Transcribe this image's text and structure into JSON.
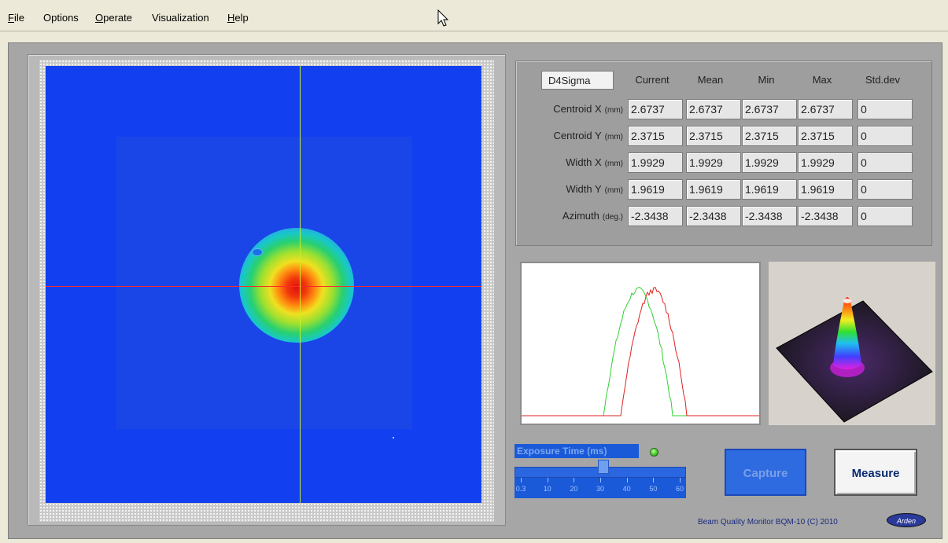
{
  "menu": [
    {
      "label": "File",
      "ul": "F",
      "rest": "ile"
    },
    {
      "label": "Options",
      "ul": "",
      "rest": "Options"
    },
    {
      "label": "Operate",
      "ul": "O",
      "rest": "perate"
    },
    {
      "label": "Visualization",
      "ul": "",
      "rest": "Visualization"
    },
    {
      "label": "Help",
      "ul": "H",
      "rest": "elp"
    }
  ],
  "stats": {
    "method": "D4Sigma",
    "columns": [
      "Current",
      "Mean",
      "Min",
      "Max",
      "Std.dev"
    ],
    "rows": [
      {
        "label": "Centroid X",
        "unit": "(mm)",
        "values": [
          "2.6737",
          "2.6737",
          "2.6737",
          "2.6737",
          "0"
        ]
      },
      {
        "label": "Centroid Y",
        "unit": "(mm)",
        "values": [
          "2.3715",
          "2.3715",
          "2.3715",
          "2.3715",
          "0"
        ]
      },
      {
        "label": "Width X",
        "unit": "(mm)",
        "values": [
          "1.9929",
          "1.9929",
          "1.9929",
          "1.9929",
          "0"
        ]
      },
      {
        "label": "Width Y",
        "unit": "(mm)",
        "values": [
          "1.9619",
          "1.9619",
          "1.9619",
          "1.9619",
          "0"
        ]
      },
      {
        "label": "Azimuth",
        "unit": "(deg.)",
        "values": [
          "-2.3438",
          "-2.3438",
          "-2.3438",
          "-2.3438",
          "0"
        ]
      }
    ]
  },
  "exposure": {
    "label": "Exposure Time (ms)",
    "ticks": [
      "0.3",
      "10",
      "20",
      "30",
      "40",
      "50",
      "60"
    ],
    "level_fraction": 0.52,
    "led_color": "#35b81c"
  },
  "buttons": {
    "capture": "Capture",
    "measure": "Measure"
  },
  "footer": {
    "text": "Beam Quality Monitor BQM-10 (C) 2010",
    "logo": "Arden"
  },
  "colors": {
    "camera_bg": "#1240f0",
    "crosshair_h": "#ff2a2a",
    "crosshair_v": "#c8f020",
    "profile_x": "#e02020",
    "profile_y": "#30d030"
  }
}
